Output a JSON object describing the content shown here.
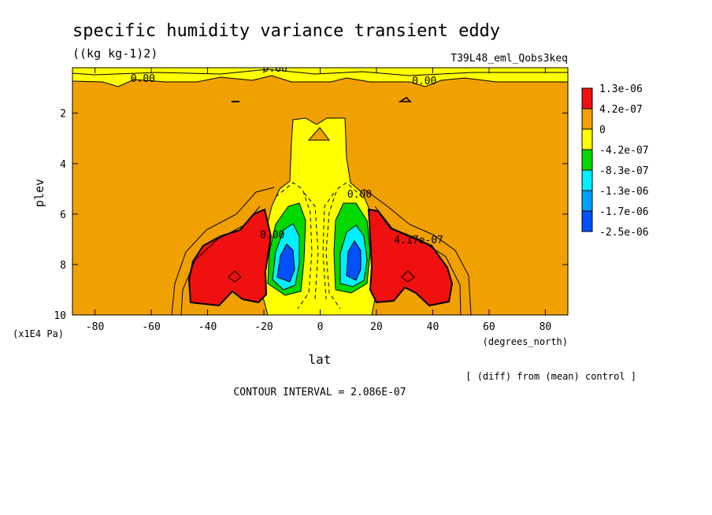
{
  "chart_data": {
    "type": "heatmap",
    "title": "specific humidity variance transient eddy",
    "units": "((kg kg-1)2)",
    "run_label": "T39L48_eml_Qobs3keq",
    "xlabel": "lat",
    "xunits": "(degrees_north)",
    "ylabel": "plev",
    "yunits": "(x1E4 Pa)",
    "xlim": [
      -88,
      88
    ],
    "ylim": [
      10,
      0.2
    ],
    "xticks": [
      -80,
      -60,
      -40,
      -20,
      0,
      20,
      40,
      60,
      80
    ],
    "xtick_labels": [
      "-80",
      "-60",
      "-40",
      "-20",
      "0",
      "20",
      "40",
      "60",
      "80"
    ],
    "yticks": [
      2,
      4,
      6,
      8,
      10
    ],
    "ytick_labels": [
      "2",
      "4",
      "6",
      "8",
      "10"
    ],
    "legend": {
      "position": "right",
      "levels": [
        {
          "label": "1.3e-06",
          "color": "#f01010"
        },
        {
          "label": "4.2e-07",
          "color": "#f0a000"
        },
        {
          "label": "0",
          "color": "#ffff00"
        },
        {
          "label": "-4.2e-07",
          "color": "#00d800"
        },
        {
          "label": "-8.3e-07",
          "color": "#00f0ff"
        },
        {
          "label": "-1.3e-06",
          "color": "#00a0ff"
        },
        {
          "label": "-1.7e-06",
          "color": "#0050ff"
        },
        {
          "label": "-2.5e-06",
          "color": "#0050ff"
        }
      ]
    },
    "contour_labels": [
      {
        "text": "0.00",
        "lat": -63,
        "plev": 0.6
      },
      {
        "text": "0.00",
        "lat": -16,
        "plev": 0.2
      },
      {
        "text": "0.00",
        "lat": 37,
        "plev": 0.7
      },
      {
        "text": "0.00",
        "lat": 14,
        "plev": 5.2
      },
      {
        "text": "0.00",
        "lat": -17,
        "plev": 6.8
      },
      {
        "text": "4.17e-07",
        "lat": 35,
        "plev": 7.0
      }
    ],
    "footer_left": "CONTOUR INTERVAL = 2.086E-07",
    "footer_right": "[ (diff) from (mean) control ]"
  }
}
